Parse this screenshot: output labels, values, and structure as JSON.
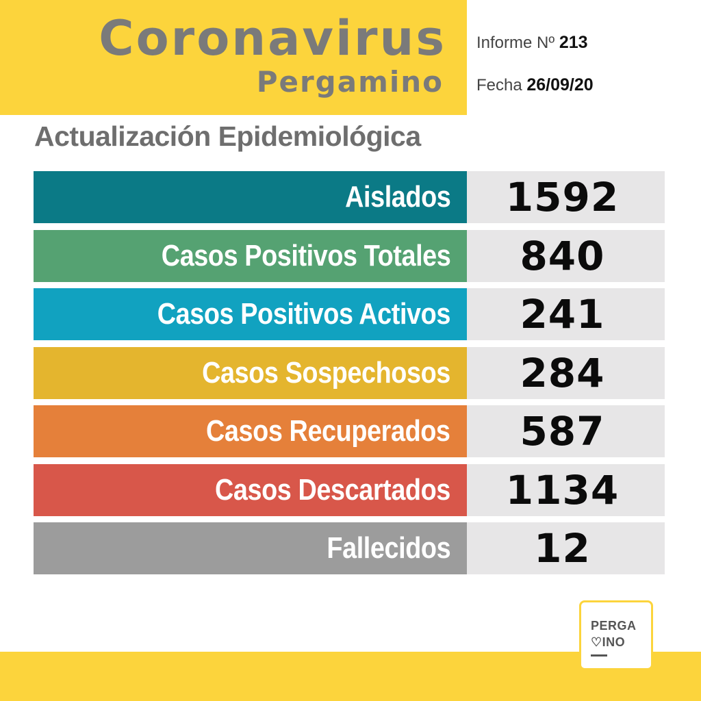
{
  "header": {
    "title": "Coronavirus",
    "subtitle": "Pergamino",
    "report_label": "Informe Nº",
    "report_number": "213",
    "date_label": "Fecha",
    "date_value": "26/09/20"
  },
  "section_title": "Actualización Epidemiológica",
  "rows": [
    {
      "label": "Aislados",
      "value": "1592",
      "color": "#0b7a86"
    },
    {
      "label": "Casos Positivos Totales",
      "value": "840",
      "color": "#55a272"
    },
    {
      "label": "Casos Positivos Activos",
      "value": "241",
      "color": "#11a2c0"
    },
    {
      "label": "Casos Sospechosos",
      "value": "284",
      "color": "#e4b52e"
    },
    {
      "label": "Casos Recuperados",
      "value": "587",
      "color": "#e5803a"
    },
    {
      "label": "Casos Descartados",
      "value": "1134",
      "color": "#d8574a"
    },
    {
      "label": "Fallecidos",
      "value": "12",
      "color": "#9c9c9c"
    }
  ],
  "logo": {
    "line1": "PERGA",
    "line2": "♡INO"
  },
  "colors": {
    "brand_yellow": "#fcd43c",
    "value_background": "#e7e6e7",
    "title_gray": "#7a7a7a"
  }
}
